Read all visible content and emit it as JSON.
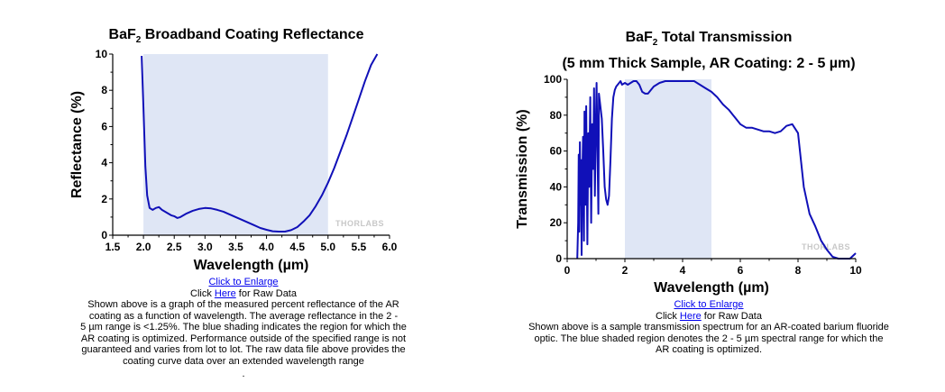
{
  "left": {
    "title_main": "BaF",
    "title_sub": "2",
    "title_rest": " Broadband Coating Reflectance",
    "watermark": "THORLABS",
    "enlarge_link": "Click to Enlarge",
    "raw_prefix": "Click ",
    "raw_link": "Here",
    "raw_suffix": " for Raw Data",
    "caption_lines": [
      "Shown above is a graph of the measured percent reflectance of the AR",
      "coating as a function of wavelength. The average reflectance in the 2 -",
      "5 µm range is <1.25%. The blue shading indicates the region for which the",
      "AR coating is optimized. Performance outside of the specified range is not",
      "guaranteed and varies from lot to lot. The raw data file above provides the",
      "coating curve data over an extended wavelength range"
    ],
    "trailing_mark": "."
  },
  "right": {
    "title_main": "BaF",
    "title_sub": "2",
    "title_rest": " Total Transmission",
    "title_line2": "(5 mm Thick Sample, AR Coating: 2 - 5 µm)",
    "watermark": "THORLABS",
    "enlarge_link": "Click to Enlarge",
    "raw_prefix": "Click ",
    "raw_link": "Here",
    "raw_suffix": " for Raw Data",
    "caption_lines": [
      "Shown above is a sample transmission spectrum for an AR-coated barium fluoride",
      "optic. The blue shaded region denotes the 2 - 5 µm spectral range for which the",
      "AR coating is optimized."
    ]
  },
  "chart_data": [
    {
      "type": "line",
      "title": "BaF2 Broadband Coating Reflectance",
      "xlabel": "Wavelength (µm)",
      "ylabel": "Reflectance (%)",
      "xlim": [
        1.5,
        6.0
      ],
      "ylim": [
        0,
        10
      ],
      "xticks": [
        1.5,
        2.0,
        2.5,
        3.0,
        3.5,
        4.0,
        4.5,
        5.0,
        5.5,
        6.0
      ],
      "xtick_labels": [
        "1.5",
        "2.0",
        "2.5",
        "3.0",
        "3.5",
        "4.0",
        "4.5",
        "5.0",
        "5.5",
        "6.0"
      ],
      "yticks": [
        0,
        2,
        4,
        6,
        8,
        10
      ],
      "ytick_labels": [
        "0",
        "2",
        "4",
        "6",
        "8",
        "10"
      ],
      "shaded_region": [
        2.0,
        5.0
      ],
      "grid": false,
      "line_color": "#1010b8",
      "shade_color": "#dfe6f5",
      "series": [
        {
          "x": [
            1.97,
            2.0,
            2.03,
            2.06,
            2.1,
            2.15,
            2.2,
            2.25,
            2.3,
            2.35,
            2.4,
            2.45,
            2.5,
            2.55,
            2.6,
            2.7,
            2.8,
            2.9,
            3.0,
            3.1,
            3.2,
            3.3,
            3.4,
            3.5,
            3.6,
            3.7,
            3.8,
            3.9,
            4.0,
            4.1,
            4.2,
            4.3,
            4.4,
            4.5,
            4.6,
            4.7,
            4.8,
            4.9,
            5.0,
            5.1,
            5.2,
            5.3,
            5.4,
            5.5,
            5.6,
            5.7,
            5.8
          ],
          "y": [
            9.9,
            7.0,
            3.8,
            2.2,
            1.5,
            1.4,
            1.5,
            1.55,
            1.4,
            1.3,
            1.2,
            1.1,
            1.05,
            0.95,
            1.0,
            1.2,
            1.35,
            1.45,
            1.5,
            1.48,
            1.4,
            1.3,
            1.15,
            1.0,
            0.85,
            0.7,
            0.55,
            0.4,
            0.3,
            0.22,
            0.2,
            0.2,
            0.28,
            0.45,
            0.75,
            1.1,
            1.6,
            2.2,
            2.9,
            3.7,
            4.6,
            5.5,
            6.5,
            7.5,
            8.5,
            9.4,
            10.0
          ]
        }
      ]
    },
    {
      "type": "line",
      "title": "BaF2 Total Transmission",
      "subtitle": "(5 mm Thick Sample, AR Coating: 2 - 5 µm)",
      "xlabel": "Wavelength (µm)",
      "ylabel": "Transmission (%)",
      "xlim": [
        0,
        10
      ],
      "ylim": [
        0,
        100
      ],
      "xticks": [
        0,
        2,
        4,
        6,
        8,
        10
      ],
      "xtick_labels": [
        "0",
        "2",
        "4",
        "6",
        "8",
        "10"
      ],
      "yticks": [
        0,
        20,
        40,
        60,
        80,
        100
      ],
      "ytick_labels": [
        "0",
        "20",
        "40",
        "60",
        "80",
        "100"
      ],
      "shaded_region": [
        2.0,
        5.0
      ],
      "grid": false,
      "line_color": "#1010b8",
      "shade_color": "#dfe6f5",
      "series": [
        {
          "x": [
            0.35,
            0.38,
            0.4,
            0.42,
            0.44,
            0.46,
            0.48,
            0.5,
            0.52,
            0.55,
            0.58,
            0.6,
            0.63,
            0.66,
            0.7,
            0.73,
            0.76,
            0.8,
            0.83,
            0.87,
            0.9,
            0.93,
            0.96,
            1.0,
            1.02,
            1.05,
            1.08,
            1.1,
            1.15,
            1.2,
            1.25,
            1.3,
            1.35,
            1.4,
            1.45,
            1.5,
            1.55,
            1.6,
            1.65,
            1.7,
            1.75,
            1.8,
            1.85,
            1.9,
            2.0,
            2.1,
            2.2,
            2.3,
            2.4,
            2.5,
            2.6,
            2.7,
            2.8,
            2.9,
            3.0,
            3.2,
            3.4,
            3.6,
            3.8,
            4.0,
            4.2,
            4.4,
            4.6,
            4.8,
            5.0,
            5.2,
            5.4,
            5.6,
            5.8,
            6.0,
            6.2,
            6.4,
            6.6,
            6.8,
            7.0,
            7.2,
            7.4,
            7.6,
            7.8,
            8.0,
            8.2,
            8.4,
            8.6,
            8.8,
            9.0,
            9.2,
            9.4,
            9.6,
            9.8,
            10.0
          ],
          "y": [
            0,
            20,
            58,
            15,
            65,
            30,
            55,
            2,
            40,
            68,
            10,
            82,
            30,
            85,
            8,
            70,
            40,
            90,
            20,
            75,
            50,
            95,
            35,
            80,
            98,
            60,
            25,
            92,
            85,
            78,
            60,
            40,
            33,
            30,
            35,
            55,
            78,
            90,
            94,
            96,
            97,
            98,
            99,
            97,
            98,
            97,
            98,
            99,
            99,
            97,
            93,
            92,
            92,
            94,
            96,
            98,
            99,
            99,
            99,
            99,
            99,
            99,
            97,
            95,
            93,
            90,
            86,
            83,
            79,
            75,
            73,
            73,
            72,
            71,
            71,
            70,
            71,
            74,
            75,
            70,
            40,
            25,
            18,
            10,
            5,
            1,
            0,
            0,
            0,
            3
          ]
        }
      ]
    }
  ]
}
